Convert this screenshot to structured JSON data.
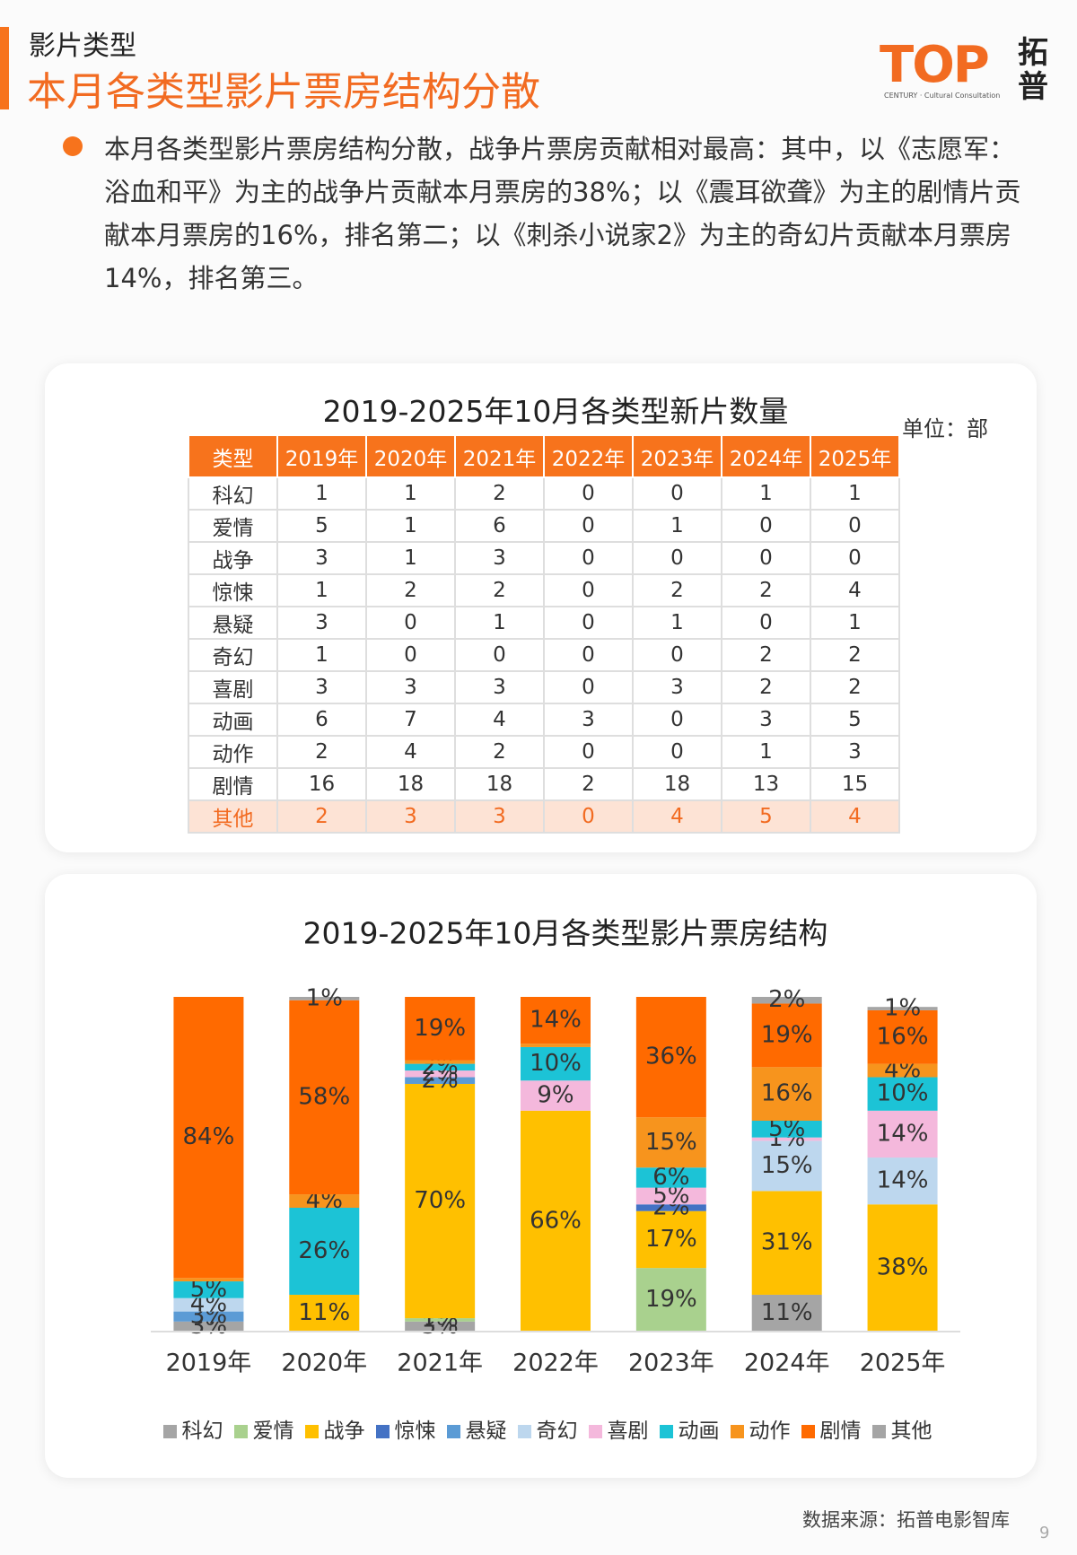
{
  "header": {
    "section": "影片类型",
    "title": "本月各类型影片票房结构分散"
  },
  "logo": {
    "mark": "TOP",
    "name_1": "拓",
    "name_2": "普",
    "tagline": "CENTURY · Cultural Consultation"
  },
  "bullet": "本月各类型影片票房结构分散，战争片票房贡献相对最高：其中，以《志愿军：浴血和平》为主的战争片贡献本月票房的38%；以《震耳欲聋》为主的剧情片贡献本月票房的16%，排名第二；以《刺杀小说家2》为主的奇幻片贡献本月票房14%，排名第三。",
  "table": {
    "title": "2019-2025年10月各类型新片数量",
    "unit": "单位：部",
    "header": [
      "类型",
      "2019年",
      "2020年",
      "2021年",
      "2022年",
      "2023年",
      "2024年",
      "2025年"
    ],
    "rows": [
      [
        "科幻",
        "1",
        "1",
        "2",
        "0",
        "0",
        "1",
        "1"
      ],
      [
        "爱情",
        "5",
        "1",
        "6",
        "0",
        "1",
        "0",
        "0"
      ],
      [
        "战争",
        "3",
        "1",
        "3",
        "0",
        "0",
        "0",
        "0"
      ],
      [
        "惊悚",
        "1",
        "2",
        "2",
        "0",
        "2",
        "2",
        "4"
      ],
      [
        "悬疑",
        "3",
        "0",
        "1",
        "0",
        "1",
        "0",
        "1"
      ],
      [
        "奇幻",
        "1",
        "0",
        "0",
        "0",
        "0",
        "2",
        "2"
      ],
      [
        "喜剧",
        "3",
        "3",
        "3",
        "0",
        "3",
        "2",
        "2"
      ],
      [
        "动画",
        "6",
        "7",
        "4",
        "3",
        "0",
        "3",
        "5"
      ],
      [
        "动作",
        "2",
        "4",
        "2",
        "0",
        "0",
        "1",
        "3"
      ],
      [
        "剧情",
        "16",
        "18",
        "18",
        "2",
        "18",
        "13",
        "15"
      ],
      [
        "其他",
        "2",
        "3",
        "3",
        "0",
        "4",
        "5",
        "4"
      ]
    ]
  },
  "chart_data": {
    "type": "stacked_bar",
    "title": "2019-2025年10月各类型影片票房结构",
    "categories": [
      "2019年",
      "2020年",
      "2021年",
      "2022年",
      "2023年",
      "2024年",
      "2025年"
    ],
    "ylim": [
      0,
      100
    ],
    "series": [
      {
        "name": "科幻",
        "color": "#a5a5a5",
        "values": [
          3,
          0,
          3,
          0,
          0,
          11,
          0
        ],
        "value_labels": [
          "3%",
          null,
          "3%",
          null,
          null,
          "11%",
          null
        ]
      },
      {
        "name": "爱情",
        "color": "#a9d18e",
        "values": [
          0,
          0,
          1,
          0,
          19,
          0,
          0
        ],
        "value_labels": [
          null,
          null,
          "1%",
          null,
          "19%",
          null,
          null
        ]
      },
      {
        "name": "战争",
        "color": "#ffc000",
        "values": [
          0,
          11,
          70,
          66,
          17,
          31,
          38
        ],
        "value_labels": [
          null,
          "11%",
          "70%",
          "66%",
          "17%",
          "31%",
          "38%"
        ]
      },
      {
        "name": "惊悚",
        "color": "#4472c4",
        "values": [
          0,
          0,
          0,
          0,
          2,
          0,
          0
        ],
        "value_labels": [
          null,
          null,
          null,
          null,
          "2%",
          null,
          null
        ]
      },
      {
        "name": "悬疑",
        "color": "#5b9bd5",
        "values": [
          3,
          0,
          2,
          0,
          0,
          0,
          0
        ],
        "value_labels": [
          "3%",
          null,
          "2%",
          null,
          null,
          null,
          null
        ]
      },
      {
        "name": "奇幻",
        "color": "#bdd7ee",
        "values": [
          4,
          0,
          0,
          0,
          0,
          15,
          14
        ],
        "value_labels": [
          "4%",
          null,
          null,
          null,
          null,
          "15%",
          "14%"
        ]
      },
      {
        "name": "喜剧",
        "color": "#f4b8dc",
        "values": [
          0,
          0,
          2,
          9,
          5,
          1,
          14
        ],
        "value_labels": [
          null,
          null,
          "2%",
          "9%",
          "5%",
          "1%",
          "14%"
        ]
      },
      {
        "name": "动画",
        "color": "#1cc3d6",
        "values": [
          5,
          26,
          2,
          10,
          6,
          5,
          10
        ],
        "value_labels": [
          "5%",
          "26%",
          "2%",
          "10%",
          "6%",
          "5%",
          "10%"
        ]
      },
      {
        "name": "动作",
        "color": "#f7941d",
        "values": [
          1,
          4,
          1,
          1,
          15,
          16,
          4
        ],
        "value_labels": [
          null,
          "4%",
          null,
          null,
          "15%",
          "16%",
          "4%"
        ]
      },
      {
        "name": "剧情",
        "color": "#ff6a00",
        "values": [
          84,
          58,
          19,
          14,
          36,
          19,
          16
        ],
        "value_labels": [
          "84%",
          "58%",
          "19%",
          "14%",
          "36%",
          "19%",
          "16%"
        ]
      },
      {
        "name": "其他",
        "color": "#a5a5a5",
        "values": [
          0,
          1,
          0,
          0,
          0,
          2,
          1
        ],
        "value_labels": [
          null,
          "1%",
          null,
          null,
          null,
          "2%",
          "1%"
        ]
      }
    ]
  },
  "source": "数据来源：拓普电影智库",
  "page_number": "9"
}
